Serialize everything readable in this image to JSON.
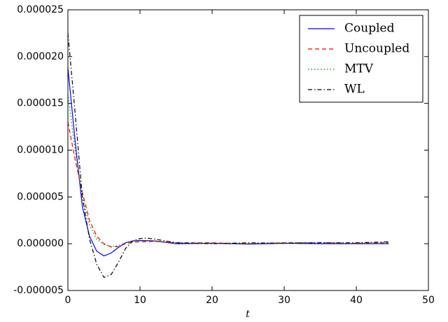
{
  "chart_data": {
    "type": "line",
    "x_label": "t",
    "x": [
      0,
      1,
      2,
      3,
      4,
      5,
      6,
      7,
      8,
      9,
      10,
      11,
      12,
      15,
      20,
      25,
      30,
      35,
      40,
      44.5
    ],
    "series": [
      {
        "name": "Coupled",
        "color": "#0000ff",
        "linestyle": "solid",
        "values": [
          1.88e-05,
          1.1e-05,
          4e-06,
          8e-07,
          -8e-07,
          -1.3e-06,
          -1e-06,
          -4e-07,
          1e-07,
          3e-07,
          3.5e-07,
          3.3e-07,
          3e-07,
          0,
          5e-08,
          -5e-08,
          5e-08,
          0,
          0,
          0
        ]
      },
      {
        "name": "Uncoupled",
        "color": "#ff0000",
        "linestyle": "dashed",
        "values": [
          1.3e-05,
          9e-06,
          5.5e-06,
          2.5e-06,
          8e-07,
          0,
          -3.5e-07,
          -3e-07,
          0,
          1.5e-07,
          2e-07,
          2.2e-07,
          2.5e-07,
          1e-07,
          1e-07,
          0,
          1e-07,
          1e-07,
          5e-08,
          1e-07
        ]
      },
      {
        "name": "MTV",
        "color": "#008000",
        "linestyle": "dotted",
        "values": [
          1.6e-05,
          1e-05,
          5e-06,
          2e-06,
          5e-07,
          -1e-07,
          -3e-07,
          -2e-07,
          1e-07,
          2.5e-07,
          3e-07,
          3e-07,
          3e-07,
          1e-07,
          5e-08,
          0,
          1e-07,
          1e-07,
          5e-08,
          1e-07
        ]
      },
      {
        "name": "WL",
        "color": "#000000",
        "linestyle": "dashdot",
        "values": [
          2.25e-05,
          1.4e-05,
          5e-06,
          5e-07,
          -2.2e-06,
          -3.6e-06,
          -3.3e-06,
          -2e-06,
          -5e-07,
          3e-07,
          5.5e-07,
          6e-07,
          5e-07,
          1e-07,
          0,
          1e-07,
          5e-08,
          1e-07,
          1e-07,
          2e-07
        ]
      }
    ],
    "xlim": [
      0,
      50
    ],
    "xticks": [
      0,
      10,
      20,
      30,
      40,
      50
    ],
    "ylim": [
      -5e-06,
      2.5e-05
    ],
    "yticks": [
      {
        "value": -5e-06,
        "label": "-0.000005"
      },
      {
        "value": 0,
        "label": "0.000000"
      },
      {
        "value": 5e-06,
        "label": "0.000005"
      },
      {
        "value": 1e-05,
        "label": "0.000010"
      },
      {
        "value": 1.5e-05,
        "label": "0.000015"
      },
      {
        "value": 2e-05,
        "label": "0.000020"
      },
      {
        "value": 2.5e-05,
        "label": "0.000025"
      }
    ],
    "grid": false,
    "legend_position": "upper right"
  }
}
